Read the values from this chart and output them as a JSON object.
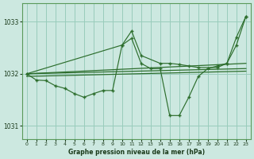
{
  "title": "Graphe pression niveau de la mer (hPa)",
  "bg_color": "#cce8e0",
  "grid_color": "#99ccbb",
  "line_color": "#2d6e2d",
  "xlim": [
    -0.5,
    23.5
  ],
  "ylim": [
    1030.75,
    1033.35
  ],
  "yticks": [
    1031,
    1032,
    1033
  ],
  "xticks": [
    0,
    1,
    2,
    3,
    4,
    5,
    6,
    7,
    8,
    9,
    10,
    11,
    12,
    13,
    14,
    15,
    16,
    17,
    18,
    19,
    20,
    21,
    22,
    23
  ],
  "series": [
    {
      "x": [
        0,
        23
      ],
      "y": [
        1032.0,
        1032.2
      ]
    },
    {
      "x": [
        0,
        23
      ],
      "y": [
        1032.0,
        1032.1
      ]
    },
    {
      "x": [
        0,
        23
      ],
      "y": [
        1031.95,
        1032.05
      ]
    },
    {
      "x": [
        0,
        1,
        2,
        3,
        4,
        5,
        6,
        7,
        8,
        9,
        10,
        11,
        12,
        13,
        14,
        15,
        16,
        17,
        18,
        19,
        20,
        21,
        22,
        23
      ],
      "y": [
        1032.0,
        1031.88,
        1031.87,
        1031.77,
        1031.72,
        1031.62,
        1031.55,
        1031.62,
        1031.68,
        1031.68,
        1032.55,
        1032.68,
        1032.2,
        1032.1,
        1032.1,
        1031.2,
        1031.2,
        1031.55,
        1031.95,
        1032.1,
        1032.15,
        1032.2,
        1032.7,
        1033.1
      ]
    },
    {
      "x": [
        0,
        10,
        11,
        12,
        14,
        15,
        16,
        17,
        18,
        20,
        21,
        22,
        23
      ],
      "y": [
        1032.0,
        1032.55,
        1032.82,
        1032.35,
        1032.2,
        1032.2,
        1032.18,
        1032.15,
        1032.12,
        1032.12,
        1032.2,
        1032.55,
        1033.1
      ]
    }
  ]
}
